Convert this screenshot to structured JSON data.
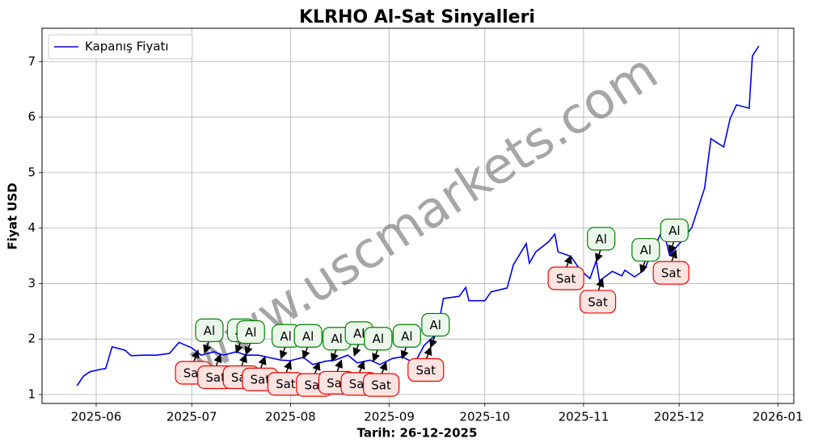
{
  "chart_data": {
    "type": "line",
    "title": "KLRHO Al-Sat Sinyalleri",
    "xlabel": "Tarih: 26-12-2025",
    "ylabel": "Fiyat USD",
    "watermark": "www.uscmarkets.com",
    "legend": "upper left",
    "grid": true,
    "xlim": [
      "2025-05-15",
      "2026-01-06"
    ],
    "xticks": [
      {
        "value": "2025-06-01",
        "label": "2025-06"
      },
      {
        "value": "2025-07-01",
        "label": "2025-07"
      },
      {
        "value": "2025-08-01",
        "label": "2025-08"
      },
      {
        "value": "2025-09-01",
        "label": "2025-09"
      },
      {
        "value": "2025-10-01",
        "label": "2025-10"
      },
      {
        "value": "2025-11-01",
        "label": "2025-11"
      },
      {
        "value": "2025-12-01",
        "label": "2025-12"
      },
      {
        "value": "2026-01-01",
        "label": "2026-01"
      }
    ],
    "ylim": [
      0.84,
      7.6
    ],
    "yticks": [
      1,
      2,
      3,
      4,
      5,
      6,
      7
    ],
    "x": [
      "2025-05-26",
      "2025-05-28",
      "2025-05-30",
      "2025-06-02",
      "2025-06-04",
      "2025-06-06",
      "2025-06-10",
      "2025-06-12",
      "2025-06-16",
      "2025-06-20",
      "2025-06-24",
      "2025-06-27",
      "2025-07-01",
      "2025-07-04",
      "2025-07-08",
      "2025-07-11",
      "2025-07-15",
      "2025-07-18",
      "2025-07-22",
      "2025-07-25",
      "2025-07-29",
      "2025-08-01",
      "2025-08-05",
      "2025-08-08",
      "2025-08-12",
      "2025-08-15",
      "2025-08-19",
      "2025-08-22",
      "2025-08-26",
      "2025-08-29",
      "2025-09-02",
      "2025-09-05",
      "2025-09-09",
      "2025-09-12",
      "2025-09-16",
      "2025-09-18",
      "2025-09-23",
      "2025-09-25",
      "2025-09-26",
      "2025-10-01",
      "2025-10-03",
      "2025-10-08",
      "2025-10-10",
      "2025-10-14",
      "2025-10-15",
      "2025-10-17",
      "2025-10-21",
      "2025-10-23",
      "2025-10-24",
      "2025-10-28",
      "2025-10-31",
      "2025-11-03",
      "2025-11-05",
      "2025-11-06",
      "2025-11-10",
      "2025-11-13",
      "2025-11-14",
      "2025-11-17",
      "2025-11-20",
      "2025-11-24",
      "2025-11-26",
      "2025-11-28",
      "2025-12-02",
      "2025-12-05",
      "2025-12-09",
      "2025-12-11",
      "2025-12-15",
      "2025-12-17",
      "2025-12-19",
      "2025-12-23",
      "2025-12-24",
      "2025-12-26"
    ],
    "series": [
      {
        "name": "Kapanış Fiyatı",
        "color": "#0000ee",
        "values": [
          1.16,
          1.33,
          1.41,
          1.45,
          1.47,
          1.86,
          1.8,
          1.7,
          1.71,
          1.71,
          1.74,
          1.94,
          1.84,
          1.71,
          1.77,
          1.71,
          1.77,
          1.71,
          1.71,
          1.67,
          1.62,
          1.61,
          1.67,
          1.54,
          1.6,
          1.62,
          1.71,
          1.57,
          1.62,
          1.54,
          1.65,
          1.68,
          1.57,
          1.89,
          2.1,
          2.73,
          2.77,
          2.93,
          2.69,
          2.69,
          2.85,
          2.92,
          3.34,
          3.72,
          3.37,
          3.57,
          3.75,
          3.89,
          3.57,
          3.49,
          3.24,
          3.09,
          3.41,
          3.05,
          3.22,
          3.14,
          3.24,
          3.12,
          3.24,
          3.75,
          3.99,
          3.51,
          3.78,
          4.01,
          4.72,
          5.61,
          5.46,
          5.97,
          6.22,
          6.16,
          7.1,
          7.28
        ]
      }
    ],
    "annotations": [
      {
        "text": "Al",
        "x": "2025-07-05",
        "y": 1.75,
        "color": "#008000"
      },
      {
        "text": "Al",
        "x": "2025-07-15",
        "y": 1.75,
        "color": "#008000"
      },
      {
        "text": "Al",
        "x": "2025-07-18",
        "y": 1.72,
        "color": "#008000"
      },
      {
        "text": "Al",
        "x": "2025-07-29",
        "y": 1.65,
        "color": "#008000"
      },
      {
        "text": "Al",
        "x": "2025-08-05",
        "y": 1.65,
        "color": "#008000"
      },
      {
        "text": "Al",
        "x": "2025-08-14",
        "y": 1.6,
        "color": "#008000"
      },
      {
        "text": "Al",
        "x": "2025-08-21",
        "y": 1.7,
        "color": "#008000"
      },
      {
        "text": "Al",
        "x": "2025-08-27",
        "y": 1.6,
        "color": "#008000"
      },
      {
        "text": "Al",
        "x": "2025-09-05",
        "y": 1.65,
        "color": "#008000"
      },
      {
        "text": "Al",
        "x": "2025-09-14",
        "y": 1.85,
        "color": "#008000"
      },
      {
        "text": "Al",
        "x": "2025-11-05",
        "y": 3.4,
        "color": "#008000"
      },
      {
        "text": "Al",
        "x": "2025-11-19",
        "y": 3.2,
        "color": "#008000"
      },
      {
        "text": "Al",
        "x": "2025-11-28",
        "y": 3.55,
        "color": "#008000"
      },
      {
        "text": "Sat",
        "x": "2025-07-03",
        "y": 1.8,
        "color": "#ee0000"
      },
      {
        "text": "Sat",
        "x": "2025-07-10",
        "y": 1.72,
        "color": "#ee0000"
      },
      {
        "text": "Sat",
        "x": "2025-07-18",
        "y": 1.72,
        "color": "#ee0000"
      },
      {
        "text": "Sat",
        "x": "2025-07-24",
        "y": 1.68,
        "color": "#ee0000"
      },
      {
        "text": "Sat",
        "x": "2025-08-01",
        "y": 1.6,
        "color": "#ee0000"
      },
      {
        "text": "Sat",
        "x": "2025-08-10",
        "y": 1.58,
        "color": "#ee0000"
      },
      {
        "text": "Sat",
        "x": "2025-08-17",
        "y": 1.62,
        "color": "#ee0000"
      },
      {
        "text": "Sat",
        "x": "2025-08-24",
        "y": 1.6,
        "color": "#ee0000"
      },
      {
        "text": "Sat",
        "x": "2025-08-31",
        "y": 1.58,
        "color": "#ee0000"
      },
      {
        "text": "Sat",
        "x": "2025-09-14",
        "y": 1.85,
        "color": "#ee0000"
      },
      {
        "text": "Sat",
        "x": "2025-10-28",
        "y": 3.5,
        "color": "#ee0000"
      },
      {
        "text": "Sat",
        "x": "2025-11-07",
        "y": 3.08,
        "color": "#ee0000"
      },
      {
        "text": "Sat",
        "x": "2025-11-30",
        "y": 3.6,
        "color": "#ee0000"
      }
    ]
  }
}
